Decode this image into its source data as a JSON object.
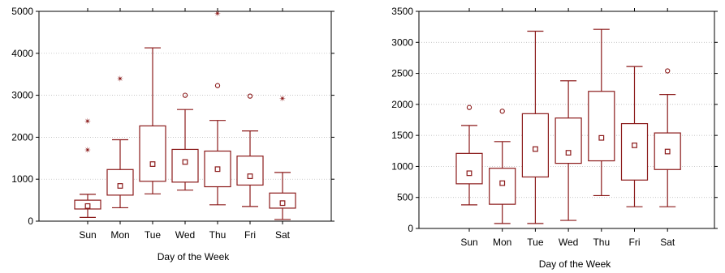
{
  "chart_data": [
    {
      "type": "boxplot",
      "xlabel": "Day of the Week",
      "ylabel": "",
      "ylim": [
        0,
        5000
      ],
      "yticks": [
        0,
        1000,
        2000,
        3000,
        4000,
        5000
      ],
      "grid": "horizontal-dotted",
      "categories": [
        "Sun",
        "Mon",
        "Tue",
        "Wed",
        "Thu",
        "Fri",
        "Sat"
      ],
      "boxes": [
        {
          "whisker_low": 90,
          "q1": 290,
          "median": 360,
          "q3": 500,
          "whisker_high": 640,
          "outliers": [],
          "extremes": [
            1700,
            2380
          ]
        },
        {
          "whisker_low": 320,
          "q1": 620,
          "median": 840,
          "q3": 1230,
          "whisker_high": 1940,
          "outliers": [],
          "extremes": [
            3400
          ]
        },
        {
          "whisker_low": 650,
          "q1": 950,
          "median": 1360,
          "q3": 2270,
          "whisker_high": 4130,
          "outliers": [],
          "extremes": []
        },
        {
          "whisker_low": 740,
          "q1": 930,
          "median": 1410,
          "q3": 1710,
          "whisker_high": 2660,
          "outliers": [
            3000
          ],
          "extremes": []
        },
        {
          "whisker_low": 390,
          "q1": 820,
          "median": 1240,
          "q3": 1670,
          "whisker_high": 2400,
          "outliers": [
            3230
          ],
          "extremes": [
            4950
          ]
        },
        {
          "whisker_low": 350,
          "q1": 860,
          "median": 1070,
          "q3": 1550,
          "whisker_high": 2150,
          "outliers": [
            2980
          ],
          "extremes": []
        },
        {
          "whisker_low": 40,
          "q1": 310,
          "median": 430,
          "q3": 670,
          "whisker_high": 1160,
          "outliers": [],
          "extremes": [
            2920
          ]
        }
      ]
    },
    {
      "type": "boxplot",
      "xlabel": "Day of the Week",
      "ylabel": "",
      "ylim": [
        0,
        3500
      ],
      "yticks": [
        0,
        500,
        1000,
        1500,
        2000,
        2500,
        3000,
        3500
      ],
      "grid": "horizontal-dotted",
      "categories": [
        "Sun",
        "Mon",
        "Tue",
        "Wed",
        "Thu",
        "Fri",
        "Sat"
      ],
      "boxes": [
        {
          "whisker_low": 380,
          "q1": 720,
          "median": 890,
          "q3": 1210,
          "whisker_high": 1660,
          "outliers": [
            1950
          ],
          "extremes": []
        },
        {
          "whisker_low": 80,
          "q1": 390,
          "median": 730,
          "q3": 970,
          "whisker_high": 1400,
          "outliers": [
            1890
          ],
          "extremes": []
        },
        {
          "whisker_low": 80,
          "q1": 830,
          "median": 1280,
          "q3": 1850,
          "whisker_high": 3180,
          "outliers": [],
          "extremes": []
        },
        {
          "whisker_low": 130,
          "q1": 1050,
          "median": 1220,
          "q3": 1780,
          "whisker_high": 2380,
          "outliers": [],
          "extremes": []
        },
        {
          "whisker_low": 530,
          "q1": 1090,
          "median": 1460,
          "q3": 2210,
          "whisker_high": 3210,
          "outliers": [],
          "extremes": []
        },
        {
          "whisker_low": 350,
          "q1": 780,
          "median": 1340,
          "q3": 1690,
          "whisker_high": 2610,
          "outliers": [],
          "extremes": []
        },
        {
          "whisker_low": 350,
          "q1": 950,
          "median": 1240,
          "q3": 1540,
          "whisker_high": 2160,
          "outliers": [
            2540
          ],
          "extremes": []
        }
      ]
    }
  ],
  "colors": {
    "box": "#8b1a1a",
    "grid": "#b0b0b0",
    "axis": "#000000"
  }
}
